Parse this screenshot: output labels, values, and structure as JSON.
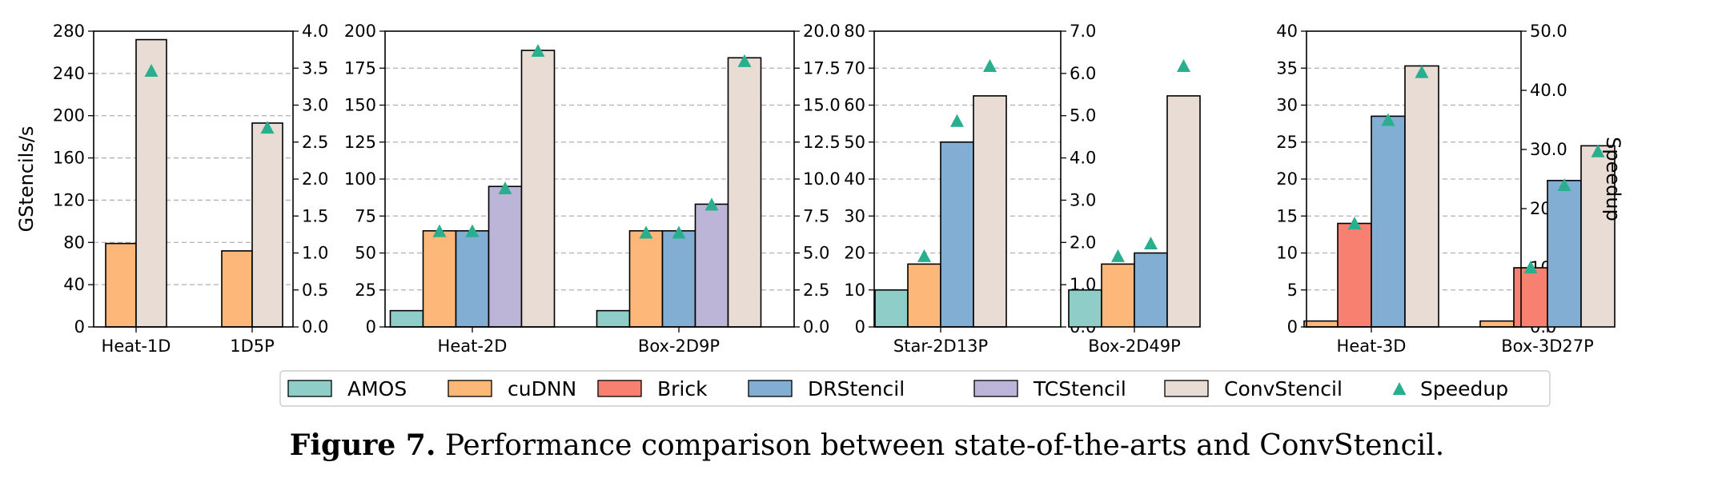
{
  "caption": {
    "label": "Figure 7.",
    "text": "Performance comparison between state-of-the-arts and ConvStencil."
  },
  "colors": {
    "AMOS": "#8ecdc8",
    "cuDNN": "#fdb879",
    "Brick": "#f88070",
    "DRStencil": "#81aed2",
    "TCStencil": "#bcb5d8",
    "ConvStencil": "#e8dcd4",
    "Speedup": "#2aaf8e"
  },
  "chart_data": [
    {
      "type": "bar",
      "ylabel": "GStencils/s",
      "ylabel_right": "",
      "ylim": [
        0,
        280
      ],
      "yticks": [
        "0",
        "40",
        "80",
        "120",
        "160",
        "200",
        "240",
        "280"
      ],
      "ylim_right": [
        0,
        4.0
      ],
      "yticks_right": [
        "0.0",
        "0.5",
        "1.0",
        "1.5",
        "2.0",
        "2.5",
        "3.0",
        "3.5",
        "4.0"
      ],
      "categories": [
        "Heat-1D",
        "1D5P"
      ],
      "series": [
        {
          "name": "cuDNN",
          "values": [
            79,
            72
          ]
        },
        {
          "name": "ConvStencil",
          "values": [
            272,
            193
          ]
        }
      ],
      "speedup": [
        3.45,
        2.68
      ],
      "grid": true
    },
    {
      "type": "bar",
      "ylabel": "",
      "ylabel_right": "",
      "ylim": [
        0,
        200
      ],
      "yticks": [
        "0",
        "25",
        "50",
        "75",
        "100",
        "125",
        "150",
        "175",
        "200"
      ],
      "ylim_right": [
        0,
        20.0
      ],
      "yticks_right": [
        "0.0",
        "2.5",
        "5.0",
        "7.5",
        "10.0",
        "12.5",
        "15.0",
        "17.5",
        "20.0"
      ],
      "categories": [
        "Heat-2D",
        "Box-2D9P"
      ],
      "series": [
        {
          "name": "AMOS",
          "values": [
            11,
            11
          ]
        },
        {
          "name": "cuDNN",
          "values": [
            65,
            65
          ]
        },
        {
          "name": "DRStencil",
          "values": [
            65,
            65
          ]
        },
        {
          "name": "TCStencil",
          "values": [
            95,
            83
          ]
        },
        {
          "name": "ConvStencil",
          "values": [
            187,
            182
          ]
        }
      ],
      "speedup_offsets": [
        1,
        2,
        3,
        4
      ],
      "speedup": [
        [
          6.4,
          6.4,
          9.3,
          18.6
        ],
        [
          6.3,
          6.3,
          8.2,
          17.9
        ]
      ],
      "grid": true
    },
    {
      "type": "bar",
      "ylabel": "",
      "ylabel_right": "",
      "ylim": [
        0,
        80
      ],
      "yticks": [
        "0",
        "10",
        "20",
        "30",
        "40",
        "50",
        "60",
        "70",
        "80"
      ],
      "ylim_right": [
        0,
        7.0
      ],
      "yticks_right": [
        "0.0",
        "1.0",
        "2.0",
        "3.0",
        "4.0",
        "5.0",
        "6.0",
        "7.0"
      ],
      "categories": [
        "Star-2D13P",
        "Box-2D49P"
      ],
      "series": [
        {
          "name": "AMOS",
          "values": [
            10,
            10
          ]
        },
        {
          "name": "cuDNN",
          "values": [
            17,
            17
          ]
        },
        {
          "name": "DRStencil",
          "values": [
            50,
            20
          ]
        },
        {
          "name": "ConvStencil",
          "values": [
            62.5,
            62.5
          ]
        }
      ],
      "speedup_offsets": [
        1,
        2,
        3
      ],
      "speedup": [
        [
          1.65,
          4.85,
          6.15
        ],
        [
          1.65,
          1.95,
          6.15
        ]
      ],
      "grid": true
    },
    {
      "type": "bar",
      "ylabel": "",
      "ylabel_right": "Speedup",
      "ylim": [
        0,
        40
      ],
      "yticks": [
        "0",
        "5",
        "10",
        "15",
        "20",
        "25",
        "30",
        "35",
        "40"
      ],
      "ylim_right": [
        0,
        50.0
      ],
      "yticks_right": [
        "0.0",
        "10.0",
        "20.0",
        "30.0",
        "40.0",
        "50.0"
      ],
      "categories": [
        "Heat-3D",
        "Box-3D27P"
      ],
      "series": [
        {
          "name": "cuDNN",
          "values": [
            0.8,
            0.8
          ]
        },
        {
          "name": "Brick",
          "values": [
            14,
            8
          ]
        },
        {
          "name": "DRStencil",
          "values": [
            28.5,
            19.8
          ]
        },
        {
          "name": "ConvStencil",
          "values": [
            35.3,
            24.5
          ]
        }
      ],
      "speedup_offsets": [
        1,
        2,
        3
      ],
      "speedup": [
        [
          17.3,
          34.8,
          42.9
        ],
        [
          9.9,
          23.8,
          29.5
        ]
      ],
      "grid": true
    }
  ],
  "legend": {
    "placement": "bottom",
    "items": [
      "AMOS",
      "cuDNN",
      "Brick",
      "DRStencil",
      "TCStencil",
      "ConvStencil",
      "Speedup"
    ]
  }
}
